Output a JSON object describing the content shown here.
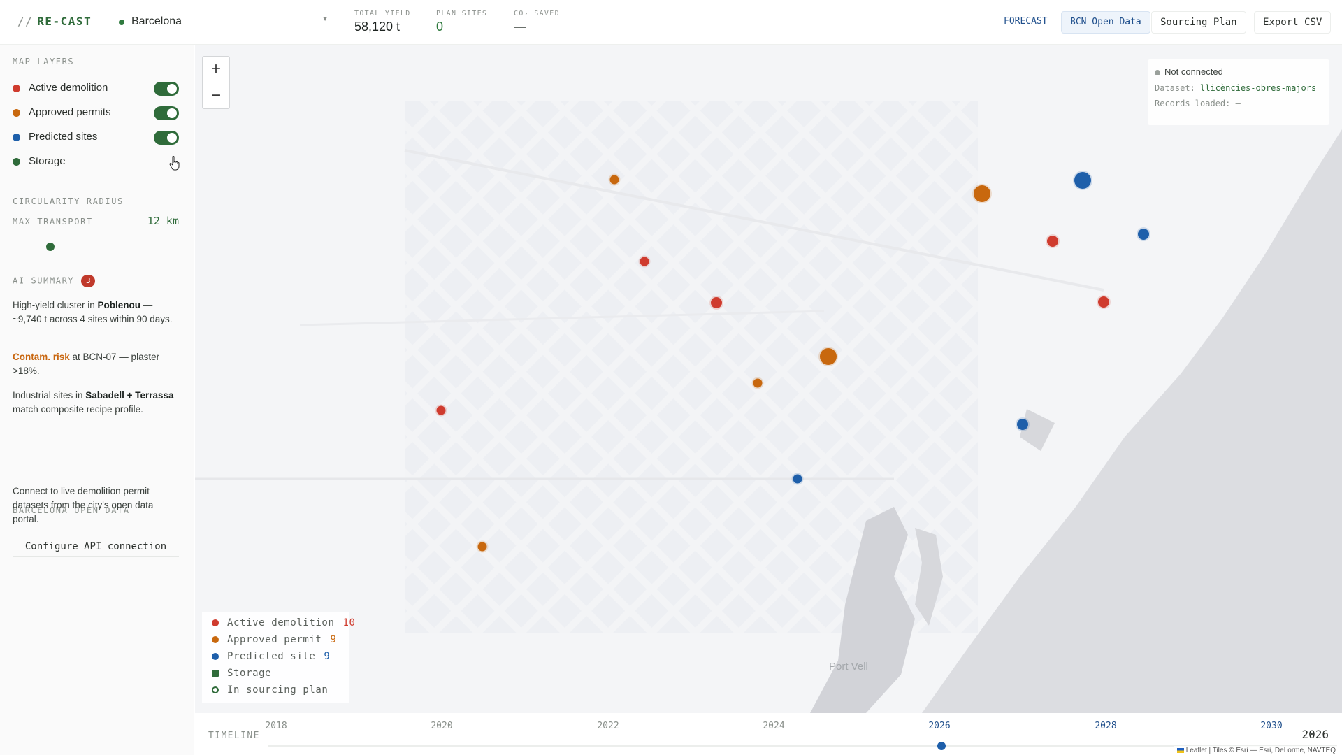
{
  "header": {
    "brand_prefix": "//",
    "brand_name": "RE-CAST",
    "city": "Barcelona",
    "kpis": [
      {
        "label": "TOTAL YIELD",
        "value": "58,120 t"
      },
      {
        "label": "PLAN SITES",
        "value": "0"
      },
      {
        "label": "CO₂ SAVED",
        "value": "—"
      }
    ],
    "forecast_link": "FORECAST",
    "open_data_button": "BCN Open Data",
    "sourcing_plan_button": "Sourcing Plan",
    "export_button": "Export CSV"
  },
  "sidebar": {
    "map_layers_title": "MAP LAYERS",
    "layers": [
      {
        "label": "Active demolition",
        "color": "#cf3b2e",
        "on": true
      },
      {
        "label": "Approved permits",
        "color": "#c8680e",
        "on": true
      },
      {
        "label": "Predicted sites",
        "color": "#1e5faa",
        "on": true
      },
      {
        "label": "Storage",
        "color": "#2f6b3a",
        "on": false
      }
    ],
    "radius_title": "CIRCULARITY RADIUS",
    "radius_label": "MAX TRANSPORT",
    "radius_value": "12 km",
    "ai_summary_title": "AI SUMMARY",
    "ai_summary_count": "3",
    "summary": {
      "s1_pre": "High-yield cluster in ",
      "s1_bold": "Poblenou",
      "s1_post": " — ~9,740 t across 4 sites within 90 days.",
      "s2_risk": "Contam. risk",
      "s2_post": " at BCN-07 — plaster >18%.",
      "s3_pre": "Industrial sites in ",
      "s3_bold": "Sabadell + Terrassa",
      "s3_post": " match composite recipe profile."
    },
    "open_data_title": "BARCELONA OPEN DATA",
    "open_data_text": "Connect to live demolition permit datasets from the city's open data portal.",
    "configure_button": "Configure API connection"
  },
  "map": {
    "zoom_in": "+",
    "zoom_out": "−",
    "status": "Not connected",
    "dataset_label": "Dataset:",
    "dataset_value": "llicències-obres-majors",
    "records_label": "Records loaded:",
    "records_value": "—",
    "legend": [
      {
        "label": "Active demolition",
        "count": "10",
        "color": "#cf3b2e",
        "shape": "dot"
      },
      {
        "label": "Approved permit",
        "count": "9",
        "color": "#c8680e",
        "shape": "dot"
      },
      {
        "label": "Predicted site",
        "count": "9",
        "color": "#1e5faa",
        "shape": "dot"
      },
      {
        "label": "Storage",
        "count": "",
        "color": "#2f6b3a",
        "shape": "square"
      },
      {
        "label": "In sourcing plan",
        "count": "",
        "color": "#2f6b3a",
        "shape": "ring"
      }
    ],
    "port_label": "Port Vell"
  },
  "timeline": {
    "label": "TIMELINE",
    "years": [
      "2018",
      "2020",
      "2022",
      "2024",
      "2026",
      "2028",
      "2030"
    ],
    "current_year": "2026",
    "attribution": "Leaflet | Tiles © Esri — Esri, DeLorme, NAVTEQ"
  },
  "colors": {
    "accent": "#2f6b3a",
    "active": "#cf3b2e",
    "approved": "#c8680e",
    "predicted": "#1e5faa",
    "link": "#1f4f8c"
  }
}
